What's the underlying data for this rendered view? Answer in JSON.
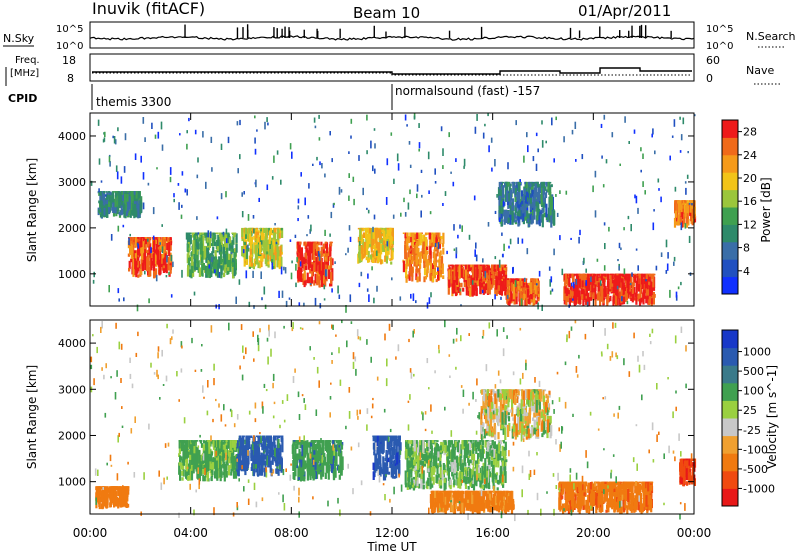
{
  "header": {
    "station": "Inuvik  (fitACF)",
    "beam": "Beam 10",
    "date": "01/Apr/2011"
  },
  "noise_panel": {
    "left_label": "N.Sky",
    "right_label": "N.Search",
    "left_ticks": [
      "10^5",
      "10^0"
    ],
    "right_ticks": [
      "10^5",
      "10^0"
    ]
  },
  "freq_panel": {
    "left_label_1": "Freq.",
    "left_label_2": "[MHz]",
    "left_ticks": [
      "18",
      "8"
    ],
    "right_label": "Nave",
    "right_ticks": [
      "60",
      "0"
    ]
  },
  "cpid": {
    "label": "CPID",
    "segments": [
      {
        "name": "themis 3300",
        "start_hour": 0
      },
      {
        "name": "normalsound (fast) -157",
        "start_hour": 12
      }
    ]
  },
  "colors": {
    "power_scale": [
      "#1030ff",
      "#2050c0",
      "#3a6ea8",
      "#2e8a6a",
      "#3fa050",
      "#9bc63c",
      "#f2c418",
      "#f59a1a",
      "#f06a1a",
      "#ee1a1a"
    ],
    "velocity_scale": [
      "#1838c8",
      "#2a5ab0",
      "#3a7a8a",
      "#40a050",
      "#9ad040",
      "#c8c8c8",
      "#f0a030",
      "#f07a10",
      "#f04a10",
      "#e81818"
    ]
  },
  "chart_data": [
    {
      "type": "heatmap",
      "name": "power",
      "ylabel": "Slant Range [km]",
      "yticks": [
        1000,
        2000,
        3000,
        4000
      ],
      "ylim": [
        300,
        4500
      ],
      "xlim": [
        0,
        24
      ],
      "colorbar": {
        "label": "Power [dB]",
        "ticks": [
          4,
          8,
          12,
          16,
          20,
          24,
          28
        ],
        "range": [
          0,
          30
        ]
      },
      "regions": [
        {
          "x0": 0.3,
          "x1": 2.0,
          "y0": 2200,
          "y1": 2800,
          "v": 10
        },
        {
          "x0": 1.5,
          "x1": 3.2,
          "y0": 900,
          "y1": 1800,
          "v": 26
        },
        {
          "x0": 3.8,
          "x1": 5.8,
          "y0": 900,
          "y1": 1900,
          "v": 14
        },
        {
          "x0": 6.0,
          "x1": 7.6,
          "y0": 1100,
          "y1": 2000,
          "v": 18
        },
        {
          "x0": 8.2,
          "x1": 9.6,
          "y0": 700,
          "y1": 1700,
          "v": 27
        },
        {
          "x0": 10.6,
          "x1": 12.0,
          "y0": 1200,
          "y1": 2000,
          "v": 20
        },
        {
          "x0": 12.4,
          "x1": 14.0,
          "y0": 800,
          "y1": 1900,
          "v": 24
        },
        {
          "x0": 14.2,
          "x1": 16.5,
          "y0": 500,
          "y1": 1200,
          "v": 27
        },
        {
          "x0": 16.5,
          "x1": 17.8,
          "y0": 300,
          "y1": 900,
          "v": 26
        },
        {
          "x0": 18.8,
          "x1": 22.4,
          "y0": 300,
          "y1": 1000,
          "v": 28
        },
        {
          "x0": 16.2,
          "x1": 18.4,
          "y0": 2000,
          "y1": 3000,
          "v": 9
        },
        {
          "x0": 23.2,
          "x1": 24.0,
          "y0": 2000,
          "y1": 2600,
          "v": 24
        }
      ]
    },
    {
      "type": "heatmap",
      "name": "velocity",
      "ylabel": "Slant Range [km]",
      "xlabel": "Time UT",
      "xticks": [
        "00:00",
        "04:00",
        "08:00",
        "12:00",
        "16:00",
        "20:00",
        "00:00"
      ],
      "yticks": [
        1000,
        2000,
        3000,
        4000
      ],
      "ylim": [
        300,
        4500
      ],
      "xlim": [
        0,
        24
      ],
      "colorbar": {
        "label": "Velocity  [m s^-1]",
        "ticks": [
          "1000",
          "500",
          "100",
          "25",
          "-25",
          "-100",
          "-500",
          "-1000"
        ]
      },
      "regions": [
        {
          "x0": 0.2,
          "x1": 1.5,
          "y0": 400,
          "y1": 900,
          "v": -300
        },
        {
          "x0": 3.5,
          "x1": 5.8,
          "y0": 1000,
          "y1": 1900,
          "v": 150
        },
        {
          "x0": 5.8,
          "x1": 7.6,
          "y0": 1100,
          "y1": 2000,
          "v": 600
        },
        {
          "x0": 8.0,
          "x1": 10.0,
          "y0": 1000,
          "y1": 1900,
          "v": 400
        },
        {
          "x0": 11.2,
          "x1": 12.3,
          "y0": 1000,
          "y1": 2000,
          "v": 900
        },
        {
          "x0": 12.5,
          "x1": 16.5,
          "y0": 800,
          "y1": 1900,
          "v": 120
        },
        {
          "x0": 13.5,
          "x1": 16.8,
          "y0": 300,
          "y1": 800,
          "v": -200
        },
        {
          "x0": 18.6,
          "x1": 22.3,
          "y0": 300,
          "y1": 1000,
          "v": -400
        },
        {
          "x0": 15.5,
          "x1": 18.3,
          "y0": 1900,
          "y1": 3000,
          "v": 0
        },
        {
          "x0": 23.4,
          "x1": 24.0,
          "y0": 900,
          "y1": 1500,
          "v": -900
        }
      ]
    }
  ]
}
